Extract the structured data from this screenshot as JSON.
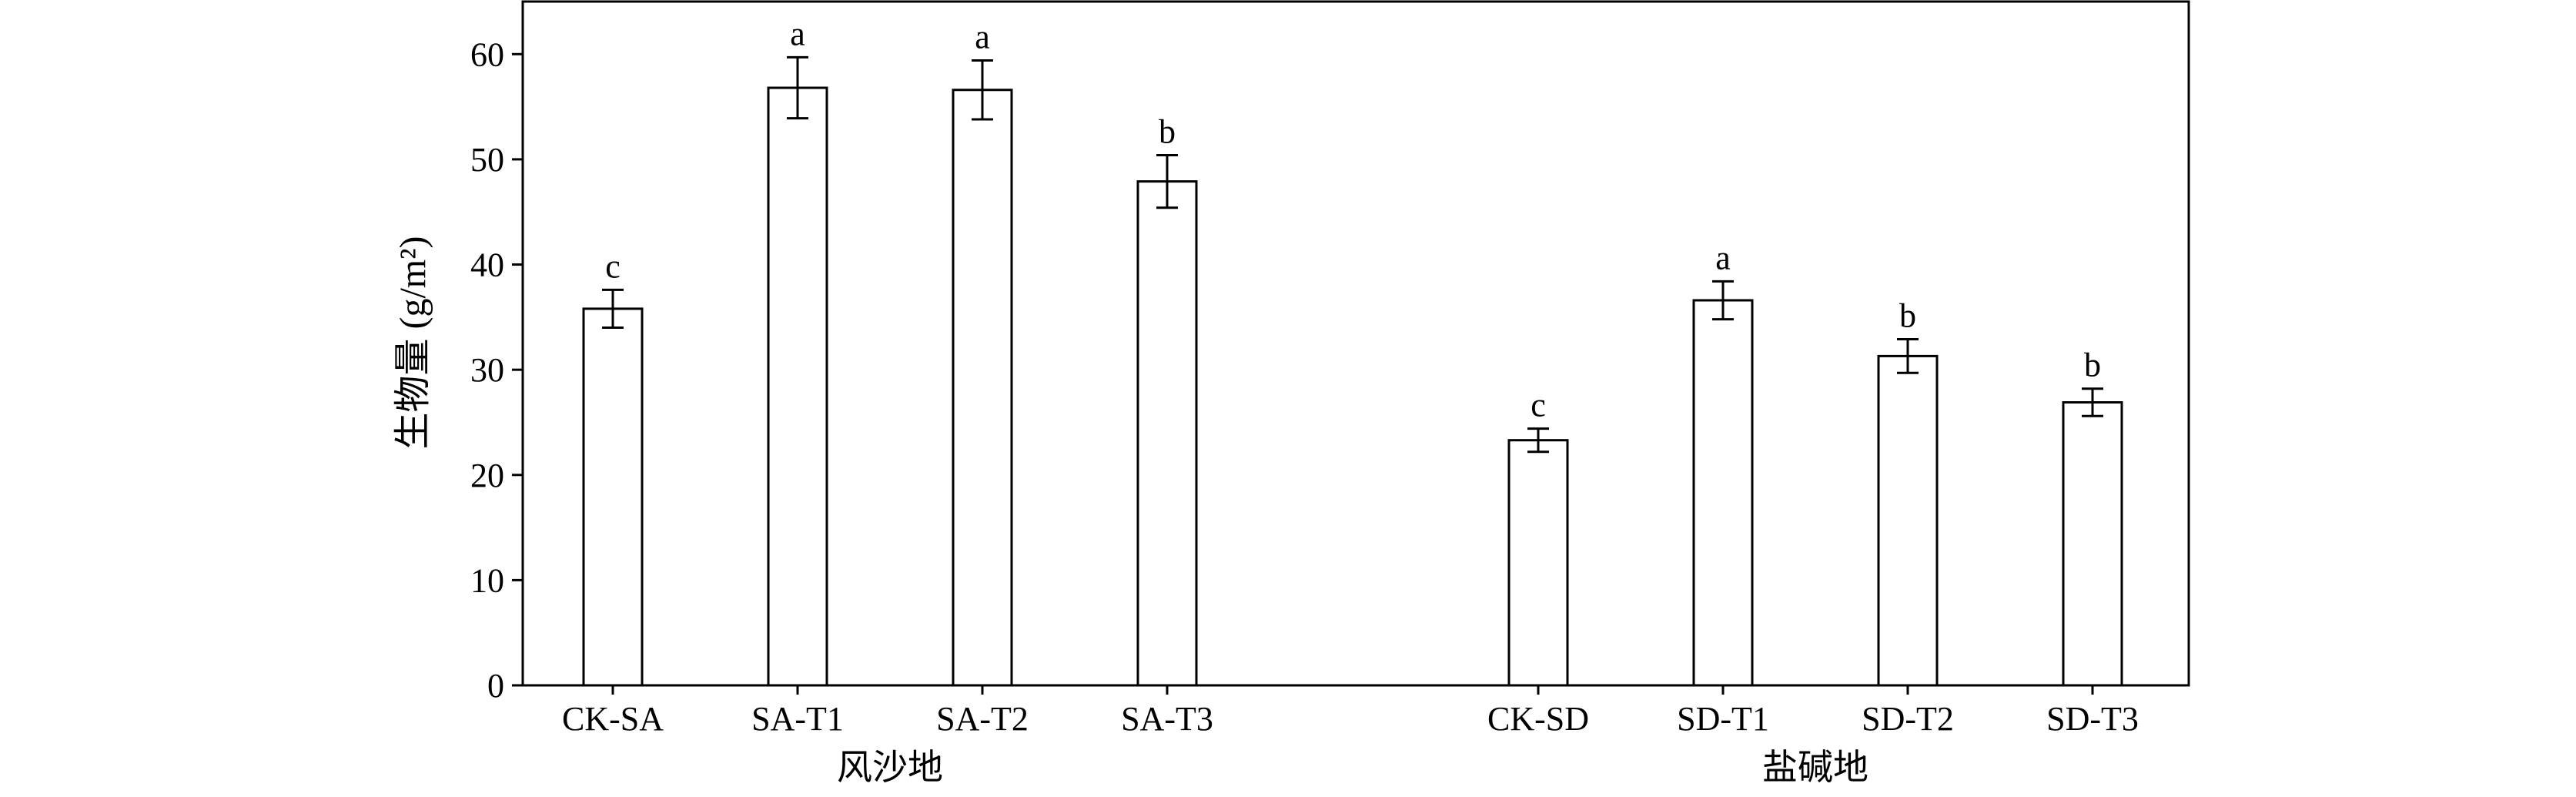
{
  "chart_data": {
    "type": "bar",
    "ylabel": "生物量 (g/m²)",
    "ylim": [
      0,
      65
    ],
    "yticks": [
      0,
      10,
      20,
      30,
      40,
      50,
      60
    ],
    "grid": false,
    "groups": [
      {
        "label": "风沙地",
        "categories": [
          "CK-SA",
          "SA-T1",
          "SA-T2",
          "SA-T3"
        ],
        "values": [
          35.8,
          56.8,
          56.6,
          47.9
        ],
        "errors": [
          1.8,
          2.9,
          2.8,
          2.5
        ],
        "significance": [
          "c",
          "a",
          "a",
          "b"
        ]
      },
      {
        "label": "盐碱地",
        "categories": [
          "CK-SD",
          "SD-T1",
          "SD-T2",
          "SD-T3"
        ],
        "values": [
          23.3,
          36.6,
          31.3,
          26.9
        ],
        "errors": [
          1.1,
          1.8,
          1.6,
          1.3
        ],
        "significance": [
          "c",
          "a",
          "b",
          "b"
        ]
      }
    ]
  }
}
